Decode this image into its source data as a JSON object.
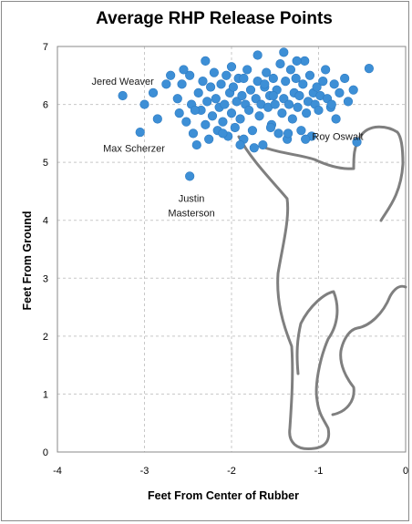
{
  "chart_data": {
    "type": "scatter",
    "title": "Average RHP Release Points",
    "xlabel": "Feet From Center of Rubber",
    "ylabel": "Feet From Ground",
    "xlim": [
      -4,
      0
    ],
    "ylim": [
      0,
      7
    ],
    "xticks": [
      "-4",
      "-3",
      "-2",
      "-1",
      "0"
    ],
    "yticks": [
      "0",
      "1",
      "2",
      "3",
      "4",
      "5",
      "6",
      "7"
    ],
    "grid": true,
    "legend": "none",
    "marker_color": "#3d8fd6",
    "silhouette_color": "#7f7f7f",
    "annotations": [
      {
        "text": "Jered Weaver",
        "x": -3.25,
        "y": 6.4
      },
      {
        "text": "Max Scherzer",
        "x": -3.12,
        "y": 5.25
      },
      {
        "text": "Justin",
        "x": -2.46,
        "y": 4.38
      },
      {
        "text": "Masterson",
        "x": -2.46,
        "y": 4.13
      },
      {
        "text": "Roy Oswalt",
        "x": -0.78,
        "y": 5.45
      }
    ],
    "points": [
      [
        -3.25,
        6.15
      ],
      [
        -3.05,
        5.52
      ],
      [
        -3.0,
        6.0
      ],
      [
        -2.48,
        4.76
      ],
      [
        -0.56,
        5.35
      ],
      [
        -0.42,
        6.62
      ],
      [
        -2.9,
        6.2
      ],
      [
        -2.75,
        6.35
      ],
      [
        -2.7,
        6.5
      ],
      [
        -2.62,
        6.1
      ],
      [
        -2.6,
        5.85
      ],
      [
        -2.57,
        6.35
      ],
      [
        -2.52,
        5.7
      ],
      [
        -2.48,
        6.5
      ],
      [
        -2.46,
        6.0
      ],
      [
        -2.44,
        5.5
      ],
      [
        -2.4,
        5.3
      ],
      [
        -2.38,
        6.2
      ],
      [
        -2.35,
        5.9
      ],
      [
        -2.33,
        6.4
      ],
      [
        -2.3,
        5.65
      ],
      [
        -2.28,
        6.05
      ],
      [
        -2.26,
        5.4
      ],
      [
        -2.24,
        6.3
      ],
      [
        -2.22,
        5.8
      ],
      [
        -2.2,
        6.55
      ],
      [
        -2.18,
        6.1
      ],
      [
        -2.16,
        5.55
      ],
      [
        -2.14,
        5.95
      ],
      [
        -2.12,
        6.35
      ],
      [
        -2.1,
        5.7
      ],
      [
        -2.08,
        6.0
      ],
      [
        -2.06,
        6.5
      ],
      [
        -2.04,
        5.45
      ],
      [
        -2.02,
        6.2
      ],
      [
        -2.0,
        5.85
      ],
      [
        -1.98,
        6.3
      ],
      [
        -1.96,
        5.6
      ],
      [
        -1.94,
        6.05
      ],
      [
        -1.92,
        6.45
      ],
      [
        -1.9,
        5.75
      ],
      [
        -1.88,
        6.15
      ],
      [
        -1.86,
        5.4
      ],
      [
        -1.84,
        6.0
      ],
      [
        -1.82,
        6.6
      ],
      [
        -1.8,
        5.9
      ],
      [
        -1.78,
        6.25
      ],
      [
        -1.76,
        5.55
      ],
      [
        -1.74,
        5.25
      ],
      [
        -1.72,
        6.1
      ],
      [
        -1.7,
        6.4
      ],
      [
        -1.68,
        5.8
      ],
      [
        -1.66,
        6.0
      ],
      [
        -1.64,
        5.3
      ],
      [
        -1.62,
        6.3
      ],
      [
        -1.6,
        6.55
      ],
      [
        -1.58,
        5.95
      ],
      [
        -1.56,
        6.15
      ],
      [
        -1.54,
        5.65
      ],
      [
        -1.52,
        6.45
      ],
      [
        -1.5,
        6.0
      ],
      [
        -1.48,
        6.25
      ],
      [
        -1.46,
        5.5
      ],
      [
        -1.44,
        6.7
      ],
      [
        -1.42,
        5.85
      ],
      [
        -1.4,
        6.1
      ],
      [
        -1.38,
        6.4
      ],
      [
        -1.36,
        5.4
      ],
      [
        -1.34,
        6.0
      ],
      [
        -1.32,
        6.6
      ],
      [
        -1.3,
        5.75
      ],
      [
        -1.28,
        6.2
      ],
      [
        -1.26,
        6.45
      ],
      [
        -1.24,
        5.95
      ],
      [
        -1.22,
        6.15
      ],
      [
        -1.2,
        5.55
      ],
      [
        -1.18,
        6.35
      ],
      [
        -1.16,
        6.75
      ],
      [
        -1.14,
        5.85
      ],
      [
        -1.12,
        6.05
      ],
      [
        -1.1,
        6.5
      ],
      [
        -1.08,
        5.45
      ],
      [
        -1.06,
        6.2
      ],
      [
        -1.04,
        6.0
      ],
      [
        -1.02,
        6.3
      ],
      [
        -1.0,
        5.9
      ],
      [
        -0.98,
        6.15
      ],
      [
        -0.95,
        6.4
      ],
      [
        -0.92,
        6.6
      ],
      [
        -0.9,
        6.1
      ],
      [
        -0.86,
        5.95
      ],
      [
        -0.82,
        6.35
      ],
      [
        -0.8,
        5.75
      ],
      [
        -0.76,
        6.2
      ],
      [
        -0.7,
        6.45
      ],
      [
        -0.66,
        6.05
      ],
      [
        -0.6,
        6.25
      ],
      [
        -2.85,
        5.75
      ],
      [
        -2.55,
        6.6
      ],
      [
        -2.3,
        6.75
      ],
      [
        -2.0,
        6.65
      ],
      [
        -1.7,
        6.85
      ],
      [
        -1.4,
        6.9
      ],
      [
        -1.25,
        6.75
      ],
      [
        -1.55,
        5.6
      ],
      [
        -1.9,
        5.3
      ],
      [
        -2.1,
        5.5
      ],
      [
        -1.35,
        5.5
      ],
      [
        -1.15,
        5.4
      ],
      [
        -0.85,
        6.0
      ],
      [
        -2.42,
        5.9
      ],
      [
        -1.62,
        6.35
      ],
      [
        -1.52,
        6.15
      ],
      [
        -1.86,
        6.45
      ]
    ]
  }
}
